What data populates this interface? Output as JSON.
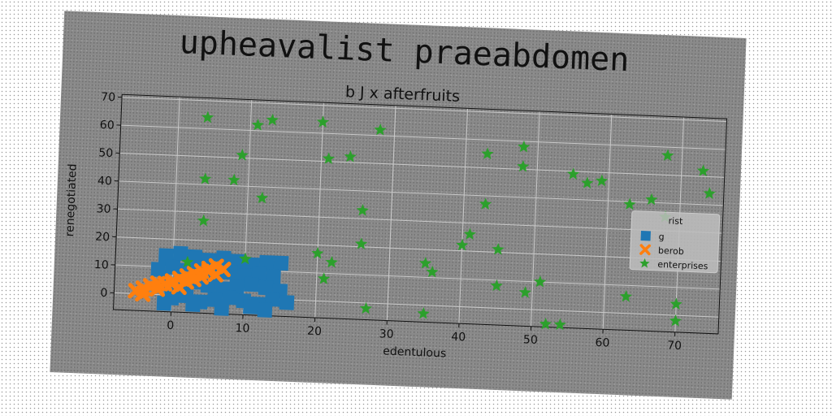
{
  "chart_data": {
    "type": "scatter",
    "title": "upheavalist praeabdomen",
    "subtitle": "b J x afterfruits",
    "xlabel": "edentulous",
    "ylabel": "renegotiated",
    "xlim": [
      -8,
      76
    ],
    "ylim": [
      -6,
      71
    ],
    "xticks": [
      0,
      10,
      20,
      30,
      40,
      50,
      60,
      70
    ],
    "yticks": [
      0,
      10,
      20,
      30,
      40,
      50,
      60,
      70
    ],
    "grid": true,
    "legend": {
      "title": "rist",
      "placement": "right"
    },
    "series": [
      {
        "name": "g",
        "marker": "square",
        "color": "#1f77b4",
        "points": [
          [
            -1,
            14
          ],
          [
            1,
            15
          ],
          [
            3,
            14
          ],
          [
            5,
            13
          ],
          [
            7,
            14
          ],
          [
            9,
            13
          ],
          [
            11,
            12
          ],
          [
            13,
            13
          ],
          [
            15,
            13
          ],
          [
            -2,
            9
          ],
          [
            0,
            10
          ],
          [
            2,
            9
          ],
          [
            4,
            10
          ],
          [
            6,
            8
          ],
          [
            8,
            9
          ],
          [
            10,
            8
          ],
          [
            12,
            9
          ],
          [
            14,
            8
          ],
          [
            -1,
            4
          ],
          [
            1,
            3
          ],
          [
            3,
            5
          ],
          [
            5,
            4
          ],
          [
            7,
            3
          ],
          [
            9,
            4
          ],
          [
            11,
            5
          ],
          [
            13,
            4
          ],
          [
            15,
            3
          ],
          [
            0,
            -1
          ],
          [
            2,
            0
          ],
          [
            4,
            -2
          ],
          [
            6,
            -1
          ],
          [
            8,
            0
          ],
          [
            10,
            -1
          ],
          [
            12,
            -2
          ],
          [
            14,
            0
          ],
          [
            16,
            -1
          ],
          [
            -1,
            -3
          ],
          [
            3,
            -3
          ],
          [
            7,
            -4
          ],
          [
            11,
            -3
          ],
          [
            13,
            -4
          ]
        ]
      },
      {
        "name": "berob",
        "marker": "x",
        "color": "#ff7f0e",
        "points": [
          [
            -5,
            1
          ],
          [
            -4,
            2
          ],
          [
            -3,
            3
          ],
          [
            -2,
            4
          ],
          [
            -1,
            4
          ],
          [
            0,
            5
          ],
          [
            1,
            6
          ],
          [
            2,
            7
          ],
          [
            3,
            8
          ],
          [
            4,
            9
          ],
          [
            5,
            10
          ],
          [
            6,
            11
          ],
          [
            -4,
            0
          ],
          [
            -2,
            2
          ],
          [
            0,
            4
          ],
          [
            2,
            5
          ],
          [
            4,
            7
          ],
          [
            6,
            8
          ],
          [
            7,
            10
          ],
          [
            1,
            3
          ],
          [
            3,
            6
          ],
          [
            5,
            9
          ]
        ]
      },
      {
        "name": "enterprises",
        "marker": "star",
        "color": "#2ca02c",
        "points": [
          [
            4,
            64
          ],
          [
            11,
            62
          ],
          [
            13,
            64
          ],
          [
            20,
            64
          ],
          [
            28,
            62
          ],
          [
            9,
            51
          ],
          [
            21,
            51
          ],
          [
            24,
            52
          ],
          [
            8,
            42
          ],
          [
            4,
            42
          ],
          [
            12,
            36
          ],
          [
            26,
            33
          ],
          [
            4,
            27
          ],
          [
            26,
            21
          ],
          [
            20,
            17
          ],
          [
            22,
            14
          ],
          [
            10,
            14
          ],
          [
            21,
            8
          ],
          [
            2,
            12
          ],
          [
            27,
            -2
          ],
          [
            35,
            -3
          ],
          [
            35,
            15
          ],
          [
            36,
            12
          ],
          [
            40,
            22
          ],
          [
            41,
            26
          ],
          [
            43,
            37
          ],
          [
            43,
            55
          ],
          [
            45,
            21
          ],
          [
            45,
            8
          ],
          [
            49,
            6
          ],
          [
            48,
            58
          ],
          [
            48,
            51
          ],
          [
            51,
            10
          ],
          [
            52,
            -5
          ],
          [
            54,
            -5
          ],
          [
            55,
            49
          ],
          [
            57,
            46
          ],
          [
            59,
            47
          ],
          [
            63,
            39
          ],
          [
            63,
            6
          ],
          [
            66,
            41
          ],
          [
            68,
            57
          ],
          [
            68,
            35
          ],
          [
            70,
            4
          ],
          [
            70,
            -2
          ],
          [
            73,
            52
          ],
          [
            74,
            44
          ]
        ]
      }
    ]
  }
}
